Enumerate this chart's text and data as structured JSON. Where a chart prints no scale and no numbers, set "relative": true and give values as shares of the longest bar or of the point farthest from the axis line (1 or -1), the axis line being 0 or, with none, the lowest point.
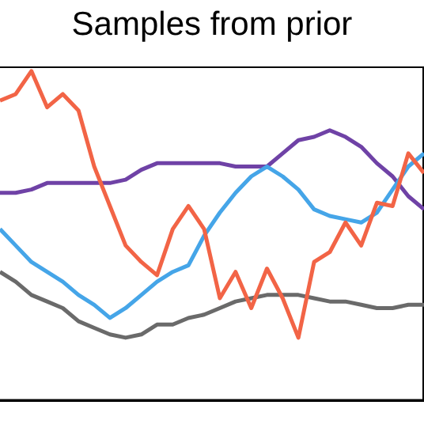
{
  "chart_data": {
    "type": "line",
    "title": "Samples from prior",
    "relative": true,
    "legend": false,
    "grid": false,
    "marker": "none",
    "line_style": "solid",
    "categories": [
      null,
      null,
      null,
      null,
      null,
      null,
      null,
      null,
      null,
      null,
      null,
      null,
      null,
      null,
      null,
      null,
      null,
      null,
      null,
      null,
      null,
      null,
      null,
      null,
      null,
      null,
      null,
      null
    ],
    "series": [
      {
        "color": "#6a6a6a",
        "values": [
          0.39,
          0.36,
          0.32,
          0.3,
          0.28,
          0.24,
          0.22,
          0.2,
          0.19,
          0.2,
          0.23,
          0.23,
          0.25,
          0.26,
          0.28,
          0.3,
          0.31,
          0.32,
          0.32,
          0.32,
          0.31,
          0.3,
          0.3,
          0.29,
          0.28,
          0.28,
          0.29,
          0.29
        ]
      },
      {
        "color": "#6f42a6",
        "values": [
          0.63,
          0.63,
          0.64,
          0.66,
          0.66,
          0.66,
          0.66,
          0.66,
          0.67,
          0.7,
          0.72,
          0.72,
          0.72,
          0.72,
          0.72,
          0.71,
          0.71,
          0.71,
          0.75,
          0.79,
          0.8,
          0.82,
          0.8,
          0.77,
          0.72,
          0.68,
          0.62,
          0.58
        ]
      },
      {
        "color": "#45a5e8",
        "values": [
          0.52,
          0.47,
          0.42,
          0.39,
          0.36,
          0.32,
          0.29,
          0.25,
          0.28,
          0.32,
          0.36,
          0.39,
          0.41,
          0.5,
          0.57,
          0.63,
          0.68,
          0.71,
          0.68,
          0.64,
          0.58,
          0.56,
          0.55,
          0.54,
          0.57,
          0.64,
          0.71,
          0.75
        ]
      },
      {
        "color": "#f26446",
        "values": [
          0.91,
          0.93,
          1,
          0.89,
          0.93,
          0.88,
          0.71,
          0.59,
          0.47,
          0.42,
          0.38,
          0.52,
          0.59,
          0.52,
          0.31,
          0.39,
          0.28,
          0.4,
          0.31,
          0.19,
          0.42,
          0.45,
          0.54,
          0.47,
          0.6,
          0.59,
          0.75,
          0.69
        ]
      }
    ]
  }
}
